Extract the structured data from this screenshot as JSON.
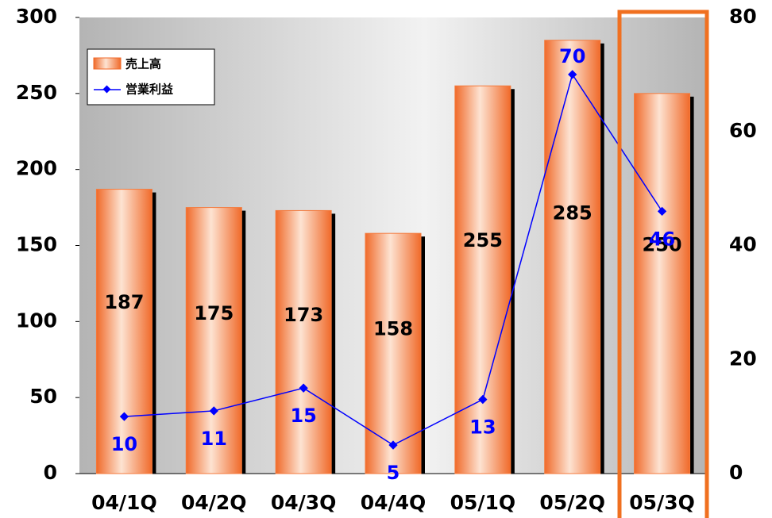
{
  "chart_data": {
    "type": "bar",
    "categories": [
      "04/1Q",
      "04/2Q",
      "04/3Q",
      "04/4Q",
      "05/1Q",
      "05/2Q",
      "05/3Q"
    ],
    "series": [
      {
        "name": "売上高",
        "type": "bar",
        "color": "#f47a3c",
        "values": [
          187,
          175,
          173,
          158,
          255,
          285,
          250
        ]
      },
      {
        "name": "営業利益",
        "type": "line",
        "axis": "y2",
        "color": "#0000ff",
        "values": [
          10,
          11,
          15,
          5,
          13,
          70,
          46
        ]
      }
    ],
    "ylim": [
      0,
      300
    ],
    "yticks": [
      0,
      50,
      100,
      150,
      200,
      250,
      300
    ],
    "y2lim": [
      0,
      80
    ],
    "y2ticks": [
      0,
      20,
      40,
      60,
      80
    ]
  }
}
